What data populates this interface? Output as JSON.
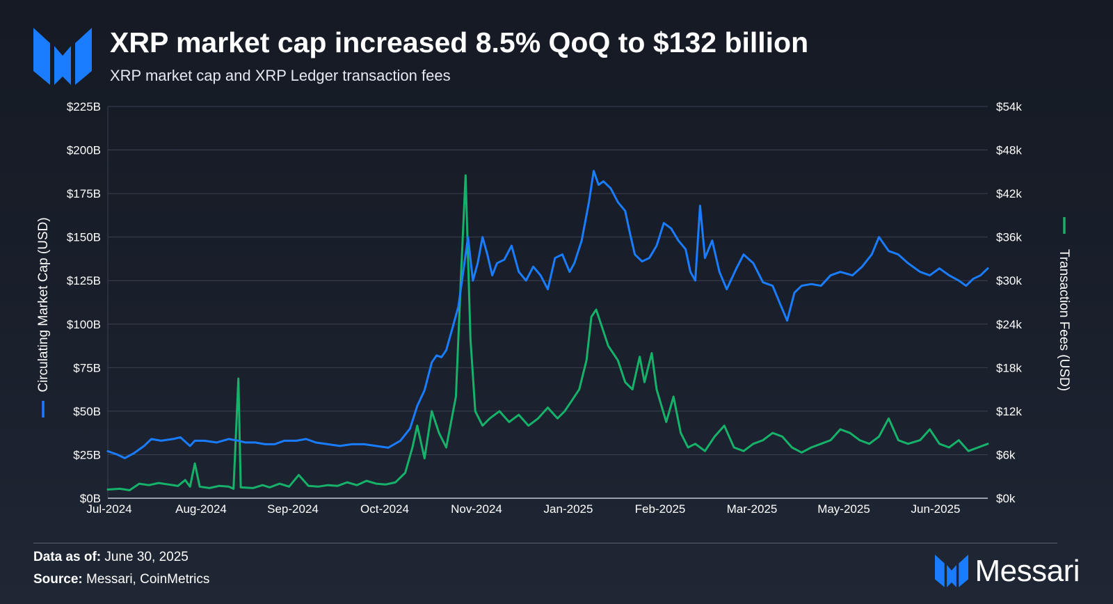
{
  "header": {
    "title": "XRP market cap increased 8.5% QoQ to $132 billion",
    "subtitle": "XRP market cap and XRP Ledger transaction fees"
  },
  "footer": {
    "data_as_of_label": "Data as of:",
    "data_as_of_value": "June 30, 2025",
    "source_label": "Source:",
    "source_value": "Messari, CoinMetrics"
  },
  "brand": {
    "name": "Messari"
  },
  "colors": {
    "market_cap": "#1a7cff",
    "fees": "#16b26a",
    "accent": "#1a7cff"
  },
  "chart_data": {
    "type": "line",
    "x_tick_labels": [
      "Jul-2024",
      "Aug-2024",
      "Sep-2024",
      "Oct-2024",
      "Nov-2024",
      "Jan-2025",
      "Feb-2025",
      "Mar-2025",
      "May-2025",
      "Jun-2025"
    ],
    "y_left": {
      "label": "Circulating Market Cap (USD)",
      "ticks": [
        "$0B",
        "$25B",
        "$50B",
        "$75B",
        "$100B",
        "$125B",
        "$150B",
        "$175B",
        "$200B",
        "$225B"
      ],
      "range": [
        0,
        225
      ]
    },
    "y_right": {
      "label": "Transaction Fees (USD)",
      "ticks": [
        "$0k",
        "$6k",
        "$12k",
        "$18k",
        "$24k",
        "$30k",
        "$36k",
        "$42k",
        "$48k",
        "$54k"
      ],
      "range": [
        0,
        54
      ]
    },
    "x_range": [
      "2024-07-01",
      "2025-06-30"
    ],
    "grid": true,
    "series": [
      {
        "name": "Circulating Market Cap (USD)",
        "axis": "left",
        "color": "#1a7cff",
        "points": [
          [
            "2024-07-01",
            27
          ],
          [
            "2024-07-05",
            25
          ],
          [
            "2024-07-08",
            23
          ],
          [
            "2024-07-12",
            26
          ],
          [
            "2024-07-16",
            30
          ],
          [
            "2024-07-19",
            34
          ],
          [
            "2024-07-23",
            33
          ],
          [
            "2024-07-28",
            34
          ],
          [
            "2024-07-31",
            35
          ],
          [
            "2024-08-04",
            30
          ],
          [
            "2024-08-06",
            33
          ],
          [
            "2024-08-10",
            33
          ],
          [
            "2024-08-15",
            32
          ],
          [
            "2024-08-20",
            34
          ],
          [
            "2024-08-24",
            33
          ],
          [
            "2024-08-27",
            32
          ],
          [
            "2024-08-31",
            32
          ],
          [
            "2024-09-04",
            31
          ],
          [
            "2024-09-08",
            31
          ],
          [
            "2024-09-12",
            33
          ],
          [
            "2024-09-17",
            33
          ],
          [
            "2024-09-21",
            34
          ],
          [
            "2024-09-25",
            32
          ],
          [
            "2024-09-30",
            31
          ],
          [
            "2024-10-05",
            30
          ],
          [
            "2024-10-10",
            31
          ],
          [
            "2024-10-15",
            31
          ],
          [
            "2024-10-20",
            30
          ],
          [
            "2024-10-25",
            29
          ],
          [
            "2024-10-30",
            33
          ],
          [
            "2024-11-03",
            40
          ],
          [
            "2024-11-06",
            53
          ],
          [
            "2024-11-09",
            62
          ],
          [
            "2024-11-12",
            78
          ],
          [
            "2024-11-14",
            82
          ],
          [
            "2024-11-16",
            81
          ],
          [
            "2024-11-18",
            85
          ],
          [
            "2024-11-21",
            100
          ],
          [
            "2024-11-23",
            110
          ],
          [
            "2024-11-25",
            130
          ],
          [
            "2024-11-27",
            150
          ],
          [
            "2024-11-29",
            125
          ],
          [
            "2024-12-01",
            135
          ],
          [
            "2024-12-03",
            150
          ],
          [
            "2024-12-05",
            140
          ],
          [
            "2024-12-07",
            128
          ],
          [
            "2024-12-09",
            135
          ],
          [
            "2024-12-12",
            137
          ],
          [
            "2024-12-15",
            145
          ],
          [
            "2024-12-18",
            130
          ],
          [
            "2024-12-21",
            125
          ],
          [
            "2024-12-24",
            133
          ],
          [
            "2024-12-27",
            128
          ],
          [
            "2024-12-30",
            120
          ],
          [
            "2025-01-02",
            138
          ],
          [
            "2025-01-05",
            140
          ],
          [
            "2025-01-08",
            130
          ],
          [
            "2025-01-10",
            135
          ],
          [
            "2025-01-13",
            148
          ],
          [
            "2025-01-16",
            170
          ],
          [
            "2025-01-18",
            188
          ],
          [
            "2025-01-20",
            180
          ],
          [
            "2025-01-22",
            182
          ],
          [
            "2025-01-25",
            178
          ],
          [
            "2025-01-28",
            170
          ],
          [
            "2025-01-31",
            165
          ],
          [
            "2025-02-02",
            152
          ],
          [
            "2025-02-04",
            140
          ],
          [
            "2025-02-07",
            136
          ],
          [
            "2025-02-10",
            138
          ],
          [
            "2025-02-13",
            145
          ],
          [
            "2025-02-16",
            158
          ],
          [
            "2025-02-19",
            155
          ],
          [
            "2025-02-22",
            148
          ],
          [
            "2025-02-25",
            143
          ],
          [
            "2025-02-27",
            130
          ],
          [
            "2025-03-01",
            125
          ],
          [
            "2025-03-03",
            168
          ],
          [
            "2025-03-05",
            138
          ],
          [
            "2025-03-08",
            148
          ],
          [
            "2025-03-11",
            130
          ],
          [
            "2025-03-14",
            120
          ],
          [
            "2025-03-18",
            132
          ],
          [
            "2025-03-21",
            140
          ],
          [
            "2025-03-25",
            135
          ],
          [
            "2025-03-29",
            124
          ],
          [
            "2025-04-02",
            122
          ],
          [
            "2025-04-05",
            112
          ],
          [
            "2025-04-08",
            102
          ],
          [
            "2025-04-11",
            118
          ],
          [
            "2025-04-14",
            122
          ],
          [
            "2025-04-18",
            123
          ],
          [
            "2025-04-22",
            122
          ],
          [
            "2025-04-26",
            128
          ],
          [
            "2025-04-30",
            130
          ],
          [
            "2025-05-05",
            128
          ],
          [
            "2025-05-09",
            133
          ],
          [
            "2025-05-13",
            140
          ],
          [
            "2025-05-16",
            150
          ],
          [
            "2025-05-20",
            142
          ],
          [
            "2025-05-24",
            140
          ],
          [
            "2025-05-28",
            135
          ],
          [
            "2025-06-02",
            130
          ],
          [
            "2025-06-06",
            128
          ],
          [
            "2025-06-10",
            132
          ],
          [
            "2025-06-14",
            128
          ],
          [
            "2025-06-18",
            125
          ],
          [
            "2025-06-21",
            122
          ],
          [
            "2025-06-24",
            126
          ],
          [
            "2025-06-27",
            128
          ],
          [
            "2025-06-30",
            132
          ]
        ]
      },
      {
        "name": "Transaction Fees (USD)",
        "axis": "right",
        "color": "#16b26a",
        "points": [
          [
            "2024-07-01",
            1.2
          ],
          [
            "2024-07-06",
            1.3
          ],
          [
            "2024-07-10",
            1.1
          ],
          [
            "2024-07-14",
            2.0
          ],
          [
            "2024-07-18",
            1.8
          ],
          [
            "2024-07-22",
            2.1
          ],
          [
            "2024-07-26",
            1.9
          ],
          [
            "2024-07-30",
            1.7
          ],
          [
            "2024-08-02",
            2.5
          ],
          [
            "2024-08-04",
            1.6
          ],
          [
            "2024-08-06",
            4.8
          ],
          [
            "2024-08-08",
            1.6
          ],
          [
            "2024-08-12",
            1.4
          ],
          [
            "2024-08-16",
            1.7
          ],
          [
            "2024-08-20",
            1.6
          ],
          [
            "2024-08-22",
            1.3
          ],
          [
            "2024-08-24",
            16.5
          ],
          [
            "2024-08-25",
            1.5
          ],
          [
            "2024-08-30",
            1.4
          ],
          [
            "2024-09-03",
            1.8
          ],
          [
            "2024-09-06",
            1.5
          ],
          [
            "2024-09-10",
            2.0
          ],
          [
            "2024-09-14",
            1.6
          ],
          [
            "2024-09-18",
            3.2
          ],
          [
            "2024-09-22",
            1.7
          ],
          [
            "2024-09-26",
            1.6
          ],
          [
            "2024-09-30",
            1.8
          ],
          [
            "2024-10-04",
            1.7
          ],
          [
            "2024-10-08",
            2.2
          ],
          [
            "2024-10-12",
            1.8
          ],
          [
            "2024-10-16",
            2.4
          ],
          [
            "2024-10-20",
            2.0
          ],
          [
            "2024-10-24",
            1.9
          ],
          [
            "2024-10-28",
            2.2
          ],
          [
            "2024-11-01",
            3.5
          ],
          [
            "2024-11-04",
            7.0
          ],
          [
            "2024-11-06",
            10.0
          ],
          [
            "2024-11-09",
            5.5
          ],
          [
            "2024-11-12",
            12.0
          ],
          [
            "2024-11-15",
            9.0
          ],
          [
            "2024-11-18",
            7.0
          ],
          [
            "2024-11-22",
            14.0
          ],
          [
            "2024-11-24",
            30.0
          ],
          [
            "2024-11-26",
            44.5
          ],
          [
            "2024-11-28",
            22.0
          ],
          [
            "2024-11-30",
            12.0
          ],
          [
            "2024-12-03",
            10.0
          ],
          [
            "2024-12-06",
            11.0
          ],
          [
            "2024-12-10",
            12.0
          ],
          [
            "2024-12-14",
            10.5
          ],
          [
            "2024-12-18",
            11.5
          ],
          [
            "2024-12-22",
            10.0
          ],
          [
            "2024-12-26",
            11.0
          ],
          [
            "2024-12-30",
            12.5
          ],
          [
            "2025-01-03",
            11.0
          ],
          [
            "2025-01-06",
            12.0
          ],
          [
            "2025-01-09",
            13.5
          ],
          [
            "2025-01-12",
            15.0
          ],
          [
            "2025-01-15",
            19.0
          ],
          [
            "2025-01-17",
            25.0
          ],
          [
            "2025-01-19",
            26.0
          ],
          [
            "2025-01-21",
            24.0
          ],
          [
            "2025-01-24",
            21.0
          ],
          [
            "2025-01-28",
            19.0
          ],
          [
            "2025-01-31",
            16.0
          ],
          [
            "2025-02-03",
            15.0
          ],
          [
            "2025-02-06",
            19.5
          ],
          [
            "2025-02-08",
            16.0
          ],
          [
            "2025-02-11",
            20.0
          ],
          [
            "2025-02-13",
            15.0
          ],
          [
            "2025-02-17",
            10.5
          ],
          [
            "2025-02-20",
            14.0
          ],
          [
            "2025-02-23",
            9.0
          ],
          [
            "2025-02-26",
            7.0
          ],
          [
            "2025-03-01",
            7.5
          ],
          [
            "2025-03-05",
            6.5
          ],
          [
            "2025-03-09",
            8.5
          ],
          [
            "2025-03-13",
            10.0
          ],
          [
            "2025-03-17",
            7.0
          ],
          [
            "2025-03-21",
            6.5
          ],
          [
            "2025-03-25",
            7.5
          ],
          [
            "2025-03-29",
            8.0
          ],
          [
            "2025-04-02",
            9.0
          ],
          [
            "2025-04-06",
            8.5
          ],
          [
            "2025-04-10",
            7.0
          ],
          [
            "2025-04-14",
            6.3
          ],
          [
            "2025-04-18",
            7.0
          ],
          [
            "2025-04-22",
            7.5
          ],
          [
            "2025-04-26",
            8.0
          ],
          [
            "2025-04-30",
            9.5
          ],
          [
            "2025-05-04",
            9.0
          ],
          [
            "2025-05-08",
            8.0
          ],
          [
            "2025-05-12",
            7.5
          ],
          [
            "2025-05-16",
            8.5
          ],
          [
            "2025-05-20",
            11.0
          ],
          [
            "2025-05-24",
            8.0
          ],
          [
            "2025-05-28",
            7.5
          ],
          [
            "2025-06-02",
            8.0
          ],
          [
            "2025-06-06",
            9.5
          ],
          [
            "2025-06-10",
            7.5
          ],
          [
            "2025-06-14",
            7.0
          ],
          [
            "2025-06-18",
            8.0
          ],
          [
            "2025-06-22",
            6.5
          ],
          [
            "2025-06-26",
            7.0
          ],
          [
            "2025-06-30",
            7.5
          ]
        ]
      }
    ]
  }
}
